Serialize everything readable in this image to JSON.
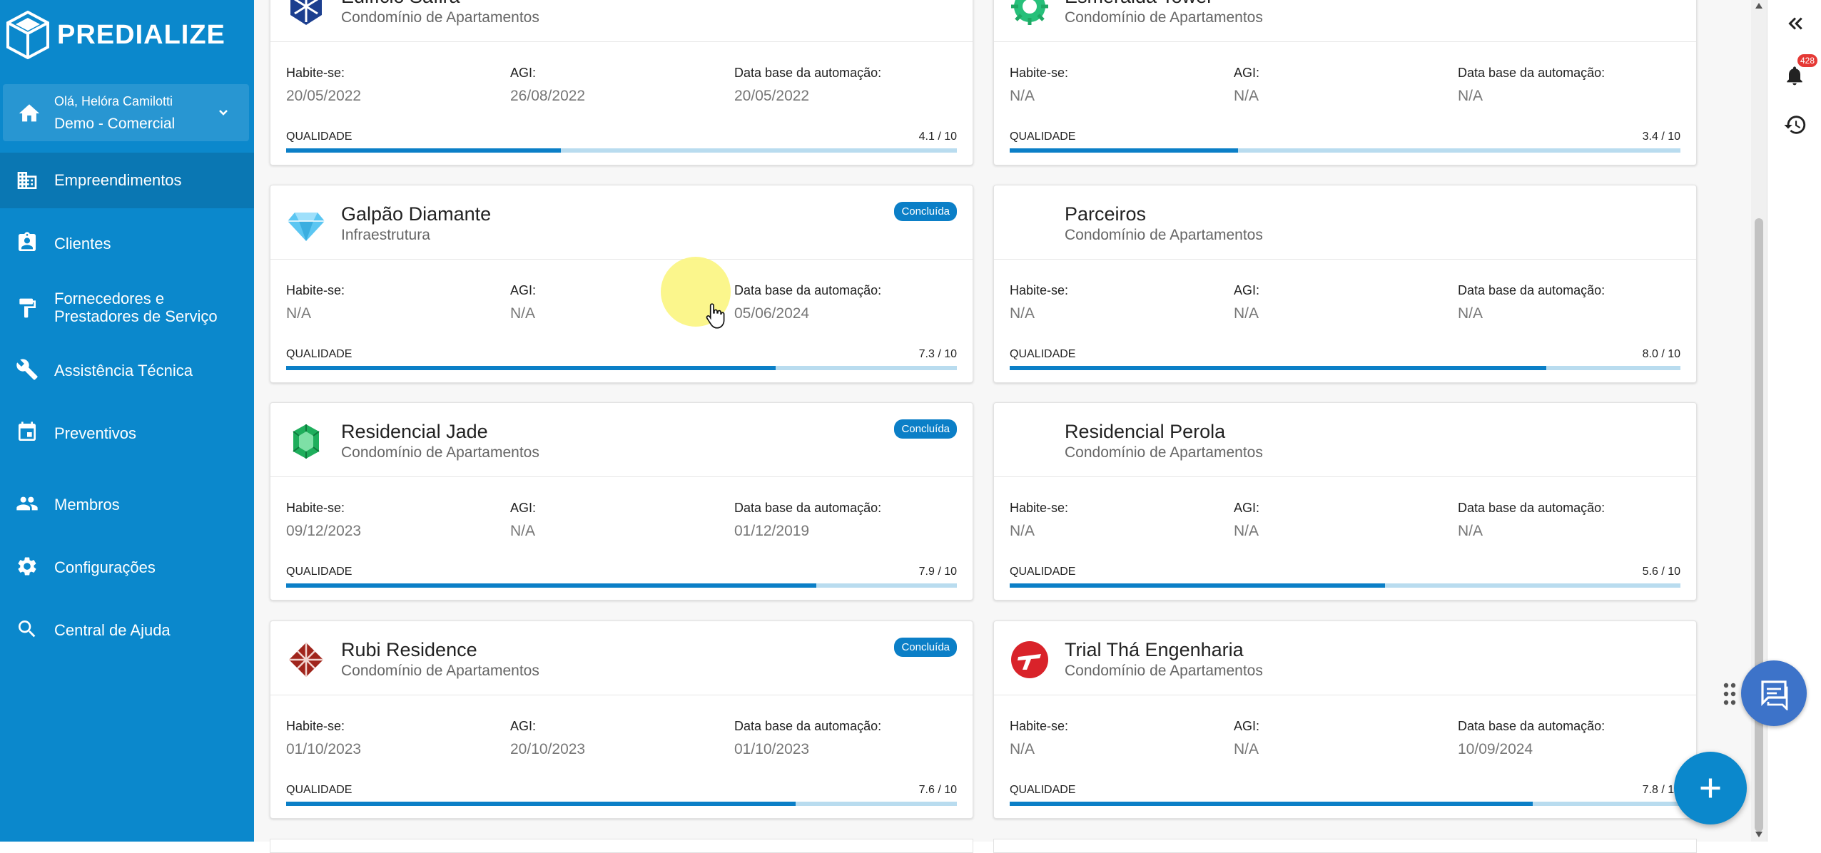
{
  "app": {
    "name": "PREDIALIZE"
  },
  "user": {
    "greeting": "Olá, Helóra Camilotti",
    "org": "Demo - Comercial"
  },
  "nav": [
    {
      "label": "Empreendimentos",
      "icon": "building-icon",
      "active": true
    },
    {
      "label": "Clientes",
      "icon": "contacts-icon"
    },
    {
      "label": "Fornecedores e\nPrestadores de Serviço",
      "icon": "paint-roller-icon"
    },
    {
      "label": "Assistência Técnica",
      "icon": "wrench-icon"
    },
    {
      "label": "Preventivos",
      "icon": "calendar-icon"
    },
    {
      "label": "Membros",
      "icon": "people-icon"
    },
    {
      "label": "Configurações",
      "icon": "gear-icon"
    },
    {
      "label": "Central de Ajuda",
      "icon": "search-icon"
    }
  ],
  "labels": {
    "habite": "Habite-se:",
    "agi": "AGI:",
    "data_base": "Data base da automação:",
    "quality": "QUALIDADE"
  },
  "notifications": {
    "count": "428"
  },
  "cards": [
    {
      "title": "Edifício Safira",
      "subtitle": "Condomínio de Apartamentos",
      "badge": "",
      "icon": "sapphire-logo-icon",
      "habite": "20/05/2022",
      "agi": "26/08/2022",
      "data_base": "20/05/2022",
      "quality": "4.1 / 10",
      "quality_value": 4.1
    },
    {
      "title": "Esmeralda Tower",
      "subtitle": "Condomínio de Apartamentos",
      "badge": "",
      "icon": "emerald-logo-icon",
      "habite": "N/A",
      "agi": "N/A",
      "data_base": "N/A",
      "quality": "3.4 / 10",
      "quality_value": 3.4
    },
    {
      "title": "Galpão Diamante",
      "subtitle": "Infraestrutura",
      "badge": "Concluída",
      "icon": "diamond-logo-icon",
      "habite": "N/A",
      "agi": "N/A",
      "data_base": "05/06/2024",
      "quality": "7.3 / 10",
      "quality_value": 7.3
    },
    {
      "title": "Parceiros",
      "subtitle": "Condomínio de Apartamentos",
      "badge": "",
      "icon": "",
      "habite": "N/A",
      "agi": "N/A",
      "data_base": "N/A",
      "quality": "8.0 / 10",
      "quality_value": 8.0
    },
    {
      "title": "Residencial Jade",
      "subtitle": "Condomínio de Apartamentos",
      "badge": "Concluída",
      "icon": "jade-logo-icon",
      "habite": "09/12/2023",
      "agi": "N/A",
      "data_base": "01/12/2019",
      "quality": "7.9 / 10",
      "quality_value": 7.9
    },
    {
      "title": "Residencial Perola",
      "subtitle": "Condomínio de Apartamentos",
      "badge": "",
      "icon": "",
      "habite": "N/A",
      "agi": "N/A",
      "data_base": "N/A",
      "quality": "5.6 / 10",
      "quality_value": 5.6
    },
    {
      "title": "Rubi Residence",
      "subtitle": "Condomínio de Apartamentos",
      "badge": "Concluída",
      "icon": "ruby-logo-icon",
      "habite": "01/10/2023",
      "agi": "20/10/2023",
      "data_base": "01/10/2023",
      "quality": "7.6 / 10",
      "quality_value": 7.6
    },
    {
      "title": "Trial Thá Engenharia",
      "subtitle": "Condomínio de Apartamentos",
      "badge": "",
      "icon": "tha-logo-icon",
      "habite": "N/A",
      "agi": "N/A",
      "data_base": "10/09/2024",
      "quality": "7.8 / 10",
      "quality_value": 7.8
    }
  ]
}
